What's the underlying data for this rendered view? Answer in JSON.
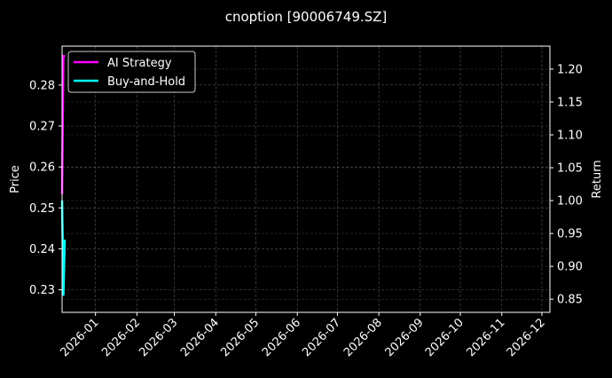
{
  "chart_data": {
    "type": "line",
    "title": "cnoption [90006749.SZ]",
    "ylabel": "Price",
    "ylabel_right": "Return",
    "xlim": [
      "2025-12-07",
      "2026-12-07"
    ],
    "ylim": [
      0.2245,
      0.2895
    ],
    "ylim_right": [
      0.83,
      1.235
    ],
    "x_ticks": [
      "2026-01",
      "2026-02",
      "2026-03",
      "2026-04",
      "2026-05",
      "2026-06",
      "2026-07",
      "2026-08",
      "2026-09",
      "2026-10",
      "2026-11",
      "2026-12"
    ],
    "y_ticks": [
      0.23,
      0.24,
      0.25,
      0.26,
      0.27,
      0.28
    ],
    "y_ticks_right": [
      0.85,
      0.9,
      0.95,
      1.0,
      1.05,
      1.1,
      1.15,
      1.2
    ],
    "grid": true,
    "legend_position": "top-left",
    "series": [
      {
        "name": "AI Strategy",
        "color": "#ff00ff",
        "axis": "right",
        "x": [
          "2025-12-07",
          "2025-12-08",
          "2025-12-09"
        ],
        "values": [
          1.01,
          1.22,
          1.22
        ]
      },
      {
        "name": "Buy-and-Hold",
        "color": "#00ffff",
        "axis": "right",
        "x": [
          "2025-12-07",
          "2025-12-08",
          "2025-12-09"
        ],
        "values": [
          1.0,
          0.856,
          0.94
        ]
      }
    ]
  }
}
